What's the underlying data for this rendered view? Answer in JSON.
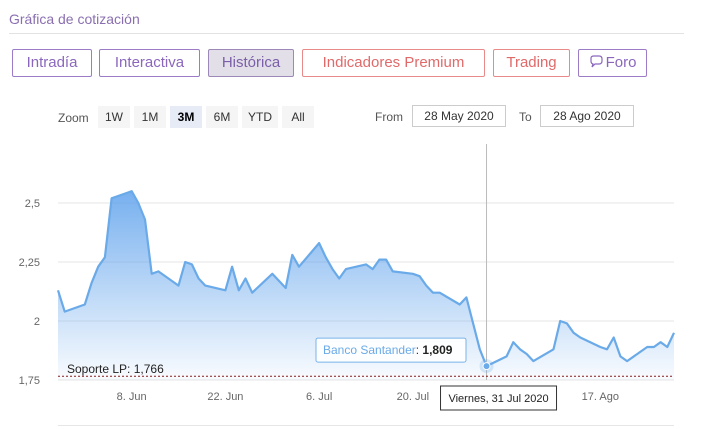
{
  "header": {
    "title": "Gráfica de cotización"
  },
  "tabs": [
    {
      "label": "Intradía",
      "variant": "normal"
    },
    {
      "label": "Interactiva",
      "variant": "normal"
    },
    {
      "label": "Histórica",
      "variant": "active"
    },
    {
      "label": "Indicadores Premium",
      "variant": "premium"
    },
    {
      "label": "Trading",
      "variant": "premium"
    },
    {
      "label": "Foro",
      "variant": "normal",
      "icon": "chat-bubble-icon"
    }
  ],
  "range_selector": {
    "zoom_label": "Zoom",
    "buttons": [
      "1W",
      "1M",
      "3M",
      "6M",
      "YTD",
      "All"
    ],
    "selected": "3M",
    "from_label": "From",
    "from_value": "28 May 2020",
    "to_label": "To",
    "to_value": "28 Ago 2020"
  },
  "colors": {
    "accent_purple": "#8a67bd",
    "premium_red": "#e06a6a",
    "series_line": "#6aaae8",
    "support_line": "#8b1a1a"
  },
  "chart_data": {
    "type": "area",
    "y_ticks": [
      "1,75",
      "2",
      "2,25",
      "2,5"
    ],
    "ylim": [
      1.75,
      2.75
    ],
    "x_ticks": [
      "8. Jun",
      "22. Jun",
      "6. Jul",
      "20. Jul",
      "3. Ago",
      "17. Ago"
    ],
    "x_tick_dates": [
      "2020-06-08",
      "2020-06-22",
      "2020-07-06",
      "2020-07-20",
      "2020-08-03",
      "2020-08-17"
    ],
    "x_range": [
      "2020-05-28",
      "2020-08-28"
    ],
    "series": [
      {
        "name": "Banco Santander",
        "x": [
          "2020-05-28",
          "2020-05-29",
          "2020-06-01",
          "2020-06-02",
          "2020-06-03",
          "2020-06-04",
          "2020-06-05",
          "2020-06-08",
          "2020-06-09",
          "2020-06-10",
          "2020-06-11",
          "2020-06-12",
          "2020-06-15",
          "2020-06-16",
          "2020-06-17",
          "2020-06-18",
          "2020-06-19",
          "2020-06-22",
          "2020-06-23",
          "2020-06-24",
          "2020-06-25",
          "2020-06-26",
          "2020-06-29",
          "2020-06-30",
          "2020-07-01",
          "2020-07-02",
          "2020-07-03",
          "2020-07-06",
          "2020-07-07",
          "2020-07-08",
          "2020-07-09",
          "2020-07-10",
          "2020-07-13",
          "2020-07-14",
          "2020-07-15",
          "2020-07-16",
          "2020-07-17",
          "2020-07-20",
          "2020-07-21",
          "2020-07-22",
          "2020-07-23",
          "2020-07-24",
          "2020-07-27",
          "2020-07-28",
          "2020-07-29",
          "2020-07-30",
          "2020-07-31",
          "2020-08-03",
          "2020-08-04",
          "2020-08-05",
          "2020-08-06",
          "2020-08-07",
          "2020-08-10",
          "2020-08-11",
          "2020-08-12",
          "2020-08-13",
          "2020-08-14",
          "2020-08-17",
          "2020-08-18",
          "2020-08-19",
          "2020-08-20",
          "2020-08-21",
          "2020-08-24",
          "2020-08-25",
          "2020-08-26",
          "2020-08-27",
          "2020-08-28"
        ],
        "values": [
          2.13,
          2.04,
          2.07,
          2.16,
          2.23,
          2.27,
          2.52,
          2.55,
          2.5,
          2.43,
          2.2,
          2.21,
          2.15,
          2.25,
          2.24,
          2.18,
          2.15,
          2.13,
          2.23,
          2.13,
          2.18,
          2.12,
          2.2,
          2.17,
          2.14,
          2.28,
          2.23,
          2.33,
          2.27,
          2.22,
          2.18,
          2.22,
          2.24,
          2.22,
          2.26,
          2.26,
          2.21,
          2.2,
          2.19,
          2.15,
          2.12,
          2.12,
          2.07,
          2.1,
          1.99,
          1.88,
          1.809,
          1.85,
          1.91,
          1.88,
          1.86,
          1.83,
          1.88,
          2.0,
          1.99,
          1.95,
          1.93,
          1.89,
          1.88,
          1.93,
          1.85,
          1.83,
          1.89,
          1.89,
          1.91,
          1.89,
          1.95
        ]
      }
    ],
    "support": {
      "label": "Soporte LP: 1,766",
      "value": 1.766
    },
    "tooltip": {
      "series_label": "Banco Santander",
      "value_text": "1,809",
      "date_label": "Viernes, 31 Jul 2020",
      "date": "2020-07-31"
    },
    "grid": true
  }
}
